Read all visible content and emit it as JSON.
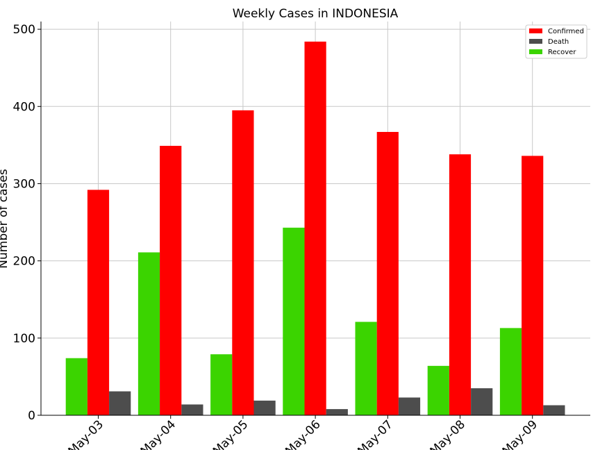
{
  "chart_data": {
    "type": "bar",
    "title": "Weekly Cases in INDONESIA",
    "xlabel": "",
    "ylabel": "Number of cases",
    "ylim": [
      0,
      510
    ],
    "yticks": [
      0,
      100,
      200,
      300,
      400,
      500
    ],
    "grid": true,
    "legend_position": "top-right",
    "categories": [
      "May-03",
      "May-04",
      "May-05",
      "May-06",
      "May-07",
      "May-08",
      "May-09"
    ],
    "series": [
      {
        "name": "Recover",
        "color": "#3bd400",
        "values": [
          74,
          211,
          79,
          243,
          121,
          64,
          113
        ]
      },
      {
        "name": "Confirmed",
        "color": "#ff0000",
        "values": [
          292,
          349,
          395,
          484,
          367,
          338,
          336
        ]
      },
      {
        "name": "Death",
        "color": "#4d4d4d",
        "values": [
          31,
          14,
          19,
          8,
          23,
          35,
          13
        ]
      }
    ],
    "legend_order": [
      "Confirmed",
      "Death",
      "Recover"
    ]
  }
}
